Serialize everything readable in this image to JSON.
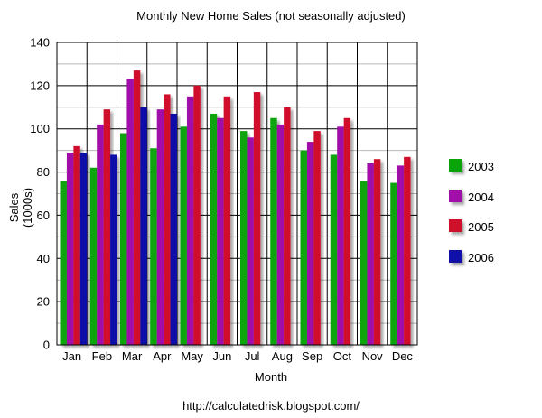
{
  "chart_data": {
    "type": "bar",
    "title": "Monthly New Home Sales (not seasonally adjusted)",
    "xlabel": "Month",
    "ylabel": "Sales (1000s)",
    "ylim": [
      0,
      140
    ],
    "yticks": [
      0,
      20,
      40,
      60,
      80,
      100,
      120,
      140
    ],
    "categories": [
      "Jan",
      "Feb",
      "Mar",
      "Apr",
      "May",
      "Jun",
      "Jul",
      "Aug",
      "Sep",
      "Oct",
      "Nov",
      "Dec"
    ],
    "series": [
      {
        "name": "2003",
        "color": "#0aa40a",
        "values": [
          76,
          82,
          98,
          91,
          101,
          107,
          99,
          105,
          90,
          88,
          76,
          75
        ]
      },
      {
        "name": "2004",
        "color": "#a010a8",
        "values": [
          89,
          102,
          123,
          109,
          115,
          105,
          96,
          102,
          94,
          101,
          84,
          83
        ]
      },
      {
        "name": "2005",
        "color": "#d0102a",
        "values": [
          92,
          109,
          127,
          116,
          120,
          115,
          117,
          110,
          99,
          105,
          86,
          87
        ]
      },
      {
        "name": "2006",
        "color": "#1010a8",
        "values": [
          89,
          88,
          110,
          107,
          null,
          null,
          null,
          null,
          null,
          null,
          null,
          null
        ]
      }
    ],
    "grid": true,
    "legend": "right"
  },
  "source": "http://calculatedrisk.blogspot.com/"
}
